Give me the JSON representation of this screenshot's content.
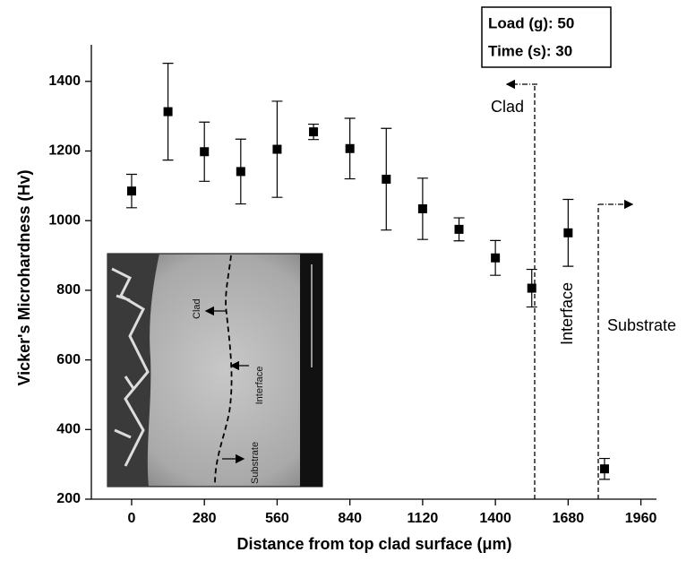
{
  "chart_data": {
    "type": "scatter",
    "x_label": "Distance from top clad surface (μm)",
    "y_label": "Vicker's  Microhardness (Hv)",
    "x": [
      0,
      140,
      280,
      420,
      560,
      700,
      840,
      980,
      1120,
      1260,
      1400,
      1540,
      1680,
      1820
    ],
    "series": [
      {
        "color": "#000000",
        "values": [
          1085,
          1313,
          1198,
          1141,
          1205,
          1255,
          1207,
          1119,
          1034,
          975,
          893,
          806,
          965,
          287
        ],
        "errors": [
          48,
          139,
          85,
          93,
          138,
          22,
          87,
          146,
          88,
          33,
          50,
          54,
          96,
          30
        ]
      }
    ],
    "xlim": [
      -155,
      2020
    ],
    "ylim": [
      200,
      1505
    ],
    "xticks": [
      0,
      280,
      560,
      840,
      1120,
      1400,
      1680,
      1960
    ],
    "yticks": [
      200,
      400,
      600,
      800,
      1000,
      1200,
      1400
    ],
    "info_box": [
      "Load (g): 50",
      "Time (s): 30"
    ],
    "region_labels": [
      "Clad",
      "Interface",
      "Substrate"
    ],
    "inset_labels": [
      "Clad",
      "Interface",
      "Substrate"
    ]
  }
}
